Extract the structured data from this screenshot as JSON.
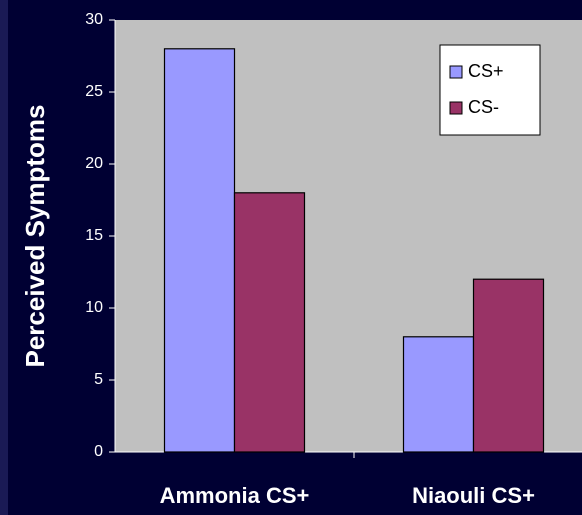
{
  "chart_data": {
    "type": "bar",
    "y_label": "Perceived Symptoms",
    "categories": [
      "Ammonia CS+",
      "Niaouli CS+"
    ],
    "series": [
      {
        "name": "CS+",
        "color": "#9999ff",
        "values": [
          28,
          8
        ]
      },
      {
        "name": "CS-",
        "color": "#993366",
        "values": [
          18,
          12
        ]
      }
    ],
    "ylim": [
      0,
      30
    ],
    "yticks": [
      0,
      5,
      10,
      15,
      20,
      25,
      30
    ],
    "legend": "top-right"
  }
}
